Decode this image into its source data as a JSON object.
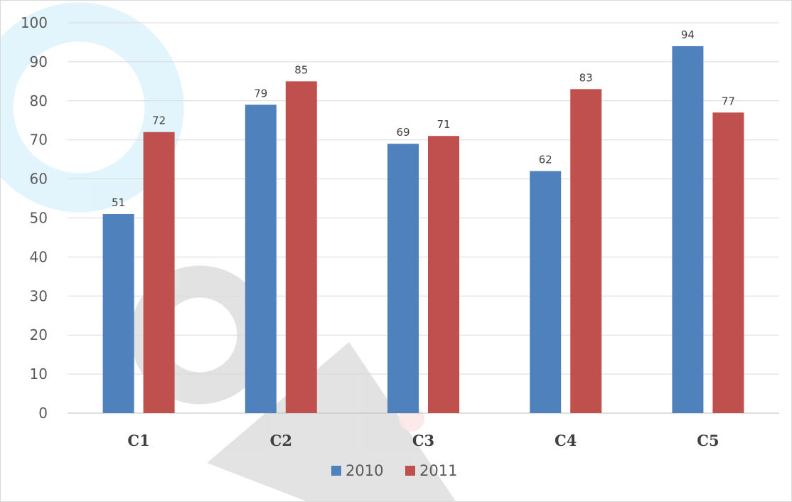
{
  "chart_data": {
    "type": "bar",
    "title": "",
    "xlabel": "",
    "ylabel": "",
    "ylim": [
      0,
      100
    ],
    "yticks": [
      0,
      10,
      20,
      30,
      40,
      50,
      60,
      70,
      80,
      90,
      100
    ],
    "categories": [
      "C1",
      "C2",
      "C3",
      "C4",
      "C5"
    ],
    "series": [
      {
        "name": "2010",
        "color": "#4f81bd",
        "values": [
          51,
          79,
          69,
          62,
          94
        ]
      },
      {
        "name": "2011",
        "color": "#c0504d",
        "values": [
          72,
          85,
          71,
          83,
          77
        ]
      }
    ],
    "grid": true,
    "legend": "bottom",
    "data_labels": true
  }
}
